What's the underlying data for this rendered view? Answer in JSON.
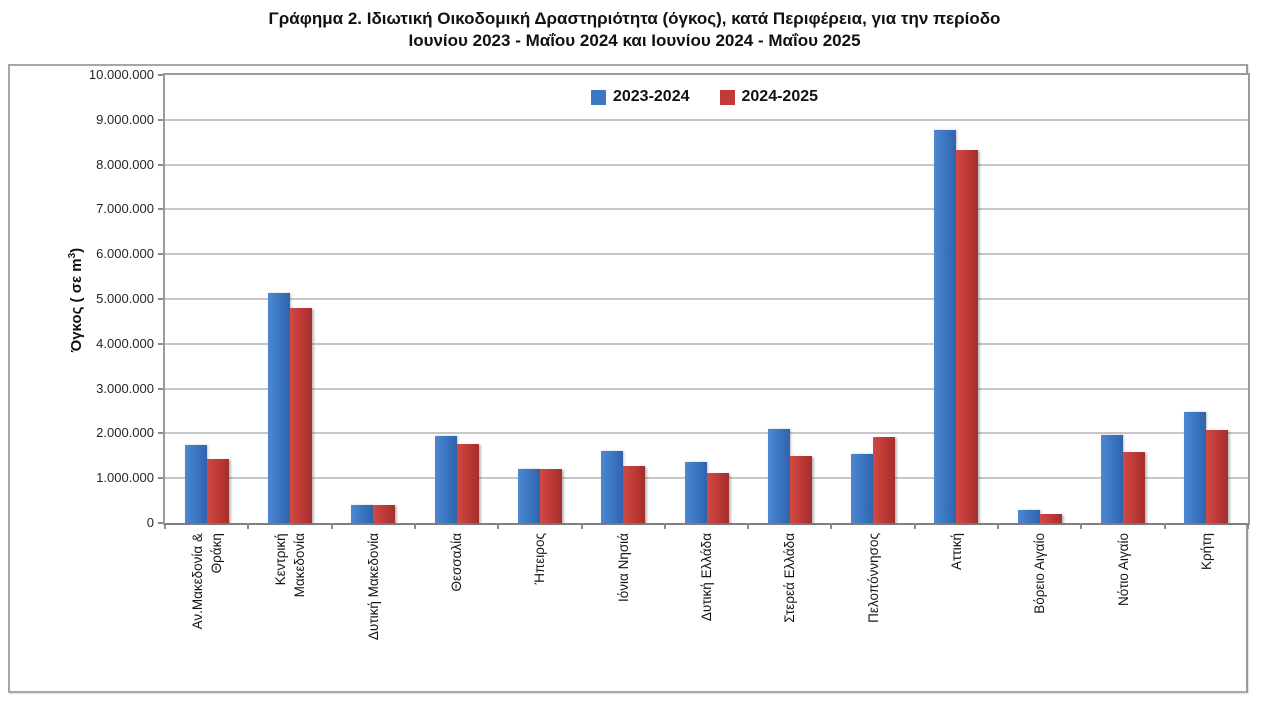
{
  "title": {
    "line1": "Γράφημα 2.  Ιδιωτική Οικοδομική Δραστηριότητα (όγκος), κατά Περιφέρεια, για την περίοδο",
    "line2": "Ιουνίου 2023 - Μαΐου 2024 και Ιουνίου 2024 - Μαΐου 2025"
  },
  "y_axis": {
    "title_main": "Όγκος ( σε  m",
    "title_sup": "3",
    "title_close": ")",
    "ticks": [
      "10.000.000",
      "9.000.000",
      "8.000.000",
      "7.000.000",
      "6.000.000",
      "5.000.000",
      "4.000.000",
      "3.000.000",
      "2.000.000",
      "1.000.000",
      "0"
    ]
  },
  "colors": {
    "grid": "#c7c7c7",
    "plot_border": "#9b9b9b",
    "frame_border": "#a6a6a6"
  },
  "chart_data": {
    "type": "bar",
    "title": "Γράφημα 2. Ιδιωτική Οικοδομική Δραστηριότητα (όγκος), κατά Περιφέρεια, για την περίοδο Ιουνίου 2023 - Μαΐου 2024 και Ιουνίου 2024 - Μαΐου 2025",
    "xlabel": "",
    "ylabel": "Όγκος ( σε m³)",
    "ylim": [
      0,
      10000000
    ],
    "ytick_step": 1000000,
    "grid": true,
    "legend_position": "top-center",
    "categories": [
      "Αν.Μακεδονία &\nΘράκη",
      "Κεντρική\nΜακεδονία",
      "Δυτική Μακεδονία",
      "Θεσσαλία",
      "Ήπειρος",
      "Ιόνια Νησιά",
      "Δυτική Ελλάδα",
      "Στερεά Ελλάδα",
      "Πελοπόννησος",
      "Αττική",
      "Βόρειο Αιγαίο",
      "Νότιο Αιγαίο",
      "Κρήτη"
    ],
    "series": [
      {
        "name": "2023-2024",
        "fill": "#3c78c3",
        "fill_light": "#4f88d2",
        "fill_dark": "#3163ac",
        "values": [
          1730000,
          5130000,
          410000,
          1940000,
          1210000,
          1600000,
          1370000,
          2090000,
          1550000,
          8780000,
          290000,
          1960000,
          2480000
        ]
      },
      {
        "name": "2024-2025",
        "fill": "#c23b38",
        "fill_light": "#cf4b45",
        "fill_dark": "#a32f2d",
        "values": [
          1420000,
          4800000,
          400000,
          1760000,
          1200000,
          1270000,
          1120000,
          1500000,
          1930000,
          8330000,
          210000,
          1580000,
          2070000
        ]
      }
    ]
  }
}
